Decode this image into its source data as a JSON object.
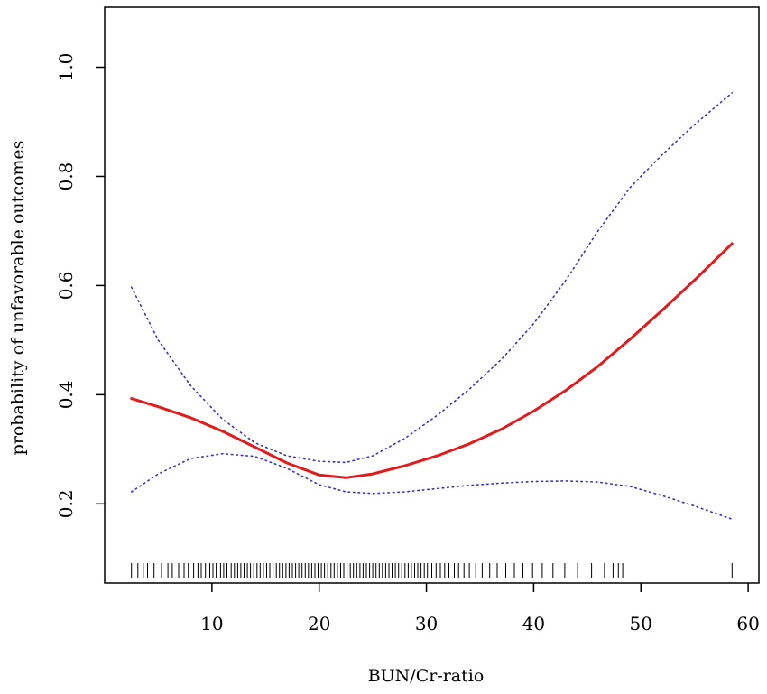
{
  "chart_data": {
    "type": "line",
    "title": "",
    "xlabel": "BUN/Cr-ratio",
    "ylabel": "probability of unfavorable outcomes",
    "xlim": [
      0,
      61
    ],
    "ylim": [
      0.055,
      1.11
    ],
    "xticks": [
      10,
      20,
      30,
      40,
      50,
      60
    ],
    "yticks": [
      0.2,
      0.4,
      0.6,
      0.8,
      1.0
    ],
    "xtick_labels": [
      "10",
      "20",
      "30",
      "40",
      "50",
      "60"
    ],
    "ytick_labels": [
      "0.2",
      "0.4",
      "0.6",
      "0.8",
      "1.0"
    ],
    "grid": false,
    "series": [
      {
        "style": "solid",
        "color": "#e31a1c",
        "x": [
          2.5,
          5,
          8,
          11,
          14,
          17,
          20,
          22.5,
          25,
          28,
          31,
          34,
          37,
          40,
          43,
          46,
          49,
          52,
          55,
          58.5
        ],
        "y": [
          0.393,
          0.378,
          0.358,
          0.333,
          0.304,
          0.275,
          0.253,
          0.248,
          0.255,
          0.27,
          0.288,
          0.31,
          0.337,
          0.37,
          0.408,
          0.452,
          0.502,
          0.555,
          0.61,
          0.677
        ]
      },
      {
        "style": "dotted",
        "color": "#3333cc",
        "x": [
          2.5,
          5,
          8,
          11,
          14,
          17,
          20,
          22.5,
          25,
          28,
          31,
          34,
          37,
          40,
          43,
          46,
          49,
          52,
          55,
          58.5
        ],
        "y": [
          0.597,
          0.5,
          0.417,
          0.355,
          0.312,
          0.288,
          0.278,
          0.276,
          0.288,
          0.32,
          0.362,
          0.41,
          0.465,
          0.53,
          0.61,
          0.7,
          0.78,
          0.84,
          0.895,
          0.953
        ]
      },
      {
        "style": "dotted",
        "color": "#3333cc",
        "x": [
          2.5,
          5,
          8,
          11,
          14,
          17,
          20,
          22.5,
          25,
          28,
          31,
          34,
          37,
          40,
          43,
          46,
          49,
          52,
          55,
          58.5
        ],
        "y": [
          0.222,
          0.255,
          0.283,
          0.292,
          0.287,
          0.265,
          0.235,
          0.222,
          0.219,
          0.222,
          0.228,
          0.234,
          0.238,
          0.241,
          0.242,
          0.24,
          0.232,
          0.215,
          0.196,
          0.172
        ]
      }
    ],
    "rug": [
      2.5,
      3.1,
      3.6,
      4.0,
      4.6,
      5.3,
      5.9,
      6.3,
      6.9,
      7.4,
      7.8,
      8.3,
      8.7,
      9.0,
      9.4,
      9.8,
      10.1,
      10.4,
      10.8,
      11.1,
      11.4,
      11.8,
      12.1,
      12.4,
      12.7,
      13.0,
      13.3,
      13.6,
      13.9,
      14.2,
      14.5,
      14.8,
      15.1,
      15.4,
      15.7,
      16.0,
      16.3,
      16.6,
      16.9,
      17.2,
      17.5,
      17.8,
      18.1,
      18.4,
      18.7,
      19.0,
      19.3,
      19.6,
      19.9,
      20.2,
      20.5,
      20.8,
      21.1,
      21.4,
      21.7,
      22.0,
      22.3,
      22.6,
      22.9,
      23.2,
      23.5,
      23.8,
      24.1,
      24.4,
      24.7,
      25.0,
      25.3,
      25.6,
      25.9,
      26.2,
      26.5,
      26.8,
      27.1,
      27.4,
      27.7,
      28.0,
      28.3,
      28.6,
      28.9,
      29.2,
      29.5,
      29.8,
      30.1,
      30.5,
      30.9,
      31.3,
      31.7,
      32.1,
      32.6,
      33.0,
      33.5,
      34.0,
      34.6,
      35.2,
      35.9,
      36.6,
      37.4,
      38.2,
      39.0,
      39.9,
      40.8,
      41.8,
      42.9,
      44.1,
      45.4,
      46.6,
      47.4,
      47.9,
      48.3,
      58.5
    ]
  }
}
